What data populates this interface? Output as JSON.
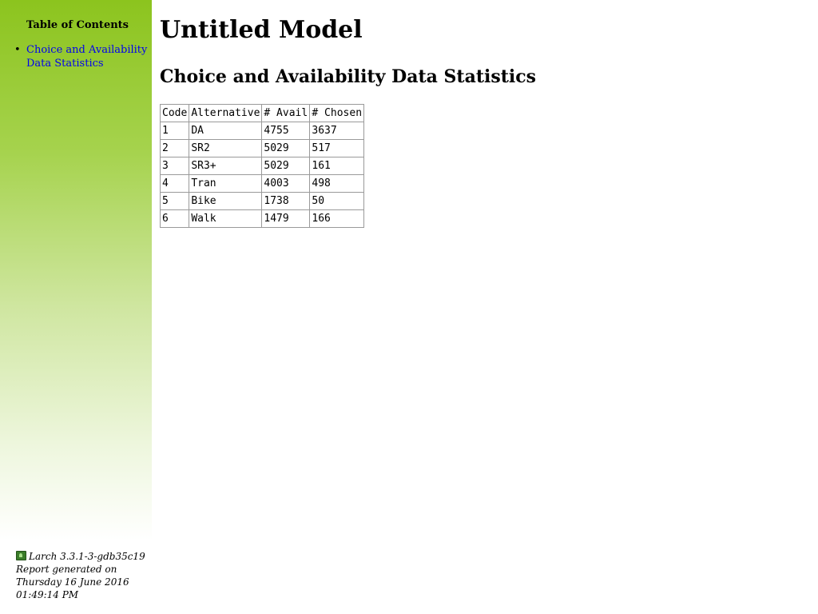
{
  "sidebar": {
    "toc_title": "Table of Contents",
    "toc_items": [
      {
        "label": "Choice and Availability Data Statistics"
      }
    ]
  },
  "footer": {
    "version": "Larch 3.3.1-3-gdb35c19",
    "generated_label": "Report generated on",
    "date": "Thursday 16 June 2016",
    "time": "01:49:14 PM"
  },
  "main": {
    "title": "Untitled Model",
    "section_title": "Choice and Availability Data Statistics",
    "table": {
      "headers": [
        "Code",
        "Alternative",
        "# Avail",
        "# Chosen"
      ],
      "rows": [
        [
          "1",
          "DA",
          "4755",
          "3637"
        ],
        [
          "2",
          "SR2",
          "5029",
          "517"
        ],
        [
          "3",
          "SR3+",
          "5029",
          "161"
        ],
        [
          "4",
          "Tran",
          "4003",
          "498"
        ],
        [
          "5",
          "Bike",
          "1738",
          "50"
        ],
        [
          "6",
          "Walk",
          "1479",
          "166"
        ]
      ]
    }
  },
  "colors": {
    "sidebar_top": "#8cc41e",
    "link": "#0000ee",
    "table_border": "#9a9a9a"
  },
  "icons": {
    "footer_logo": "larch-logo-icon"
  }
}
